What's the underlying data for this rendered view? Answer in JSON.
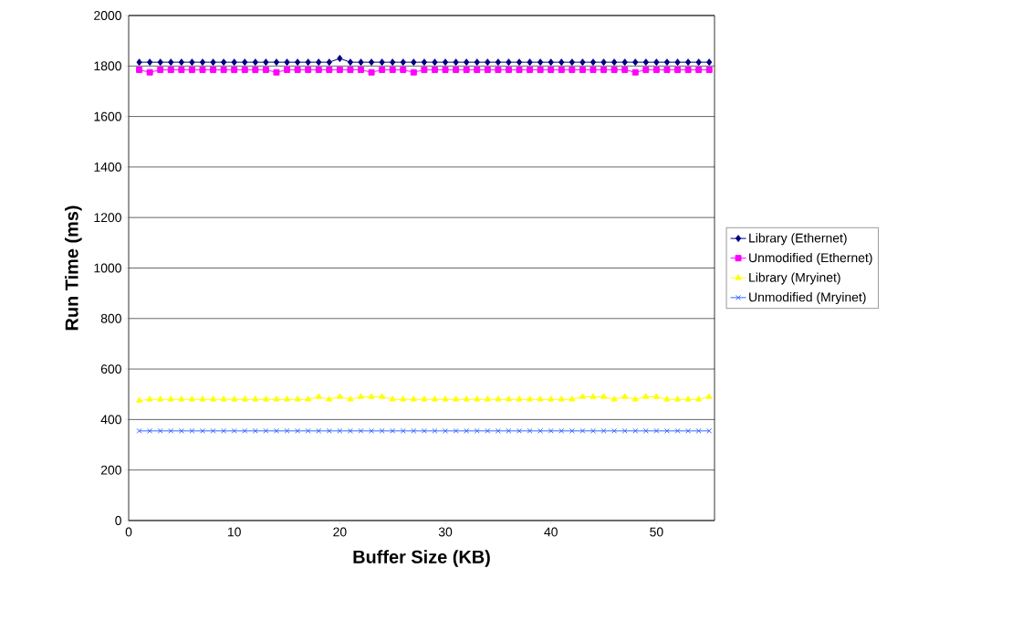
{
  "chart_data": {
    "type": "line",
    "xlabel": "Buffer Size (KB)",
    "ylabel": "Run Time (ms)",
    "x": [
      1,
      2,
      3,
      4,
      5,
      6,
      7,
      8,
      9,
      10,
      11,
      12,
      13,
      14,
      15,
      16,
      17,
      18,
      19,
      20,
      21,
      22,
      23,
      24,
      25,
      26,
      27,
      28,
      29,
      30,
      31,
      32,
      33,
      34,
      35,
      36,
      37,
      38,
      39,
      40,
      41,
      42,
      43,
      44,
      45,
      46,
      47,
      48,
      49,
      50,
      51,
      52,
      53,
      54,
      55
    ],
    "series": [
      {
        "name": "Library (Ethernet)",
        "color": "#000080",
        "marker": "diamond",
        "values": [
          1815,
          1815,
          1815,
          1815,
          1815,
          1815,
          1815,
          1815,
          1815,
          1815,
          1815,
          1815,
          1815,
          1815,
          1815,
          1815,
          1815,
          1815,
          1815,
          1830,
          1815,
          1815,
          1815,
          1815,
          1815,
          1815,
          1815,
          1815,
          1815,
          1815,
          1815,
          1815,
          1815,
          1815,
          1815,
          1815,
          1815,
          1815,
          1815,
          1815,
          1815,
          1815,
          1815,
          1815,
          1815,
          1815,
          1815,
          1815,
          1815,
          1815,
          1815,
          1815,
          1815,
          1815,
          1815
        ]
      },
      {
        "name": "Unmodified (Ethernet)",
        "color": "#ff00ff",
        "marker": "square",
        "values": [
          1785,
          1775,
          1785,
          1785,
          1785,
          1785,
          1785,
          1785,
          1785,
          1785,
          1785,
          1785,
          1785,
          1775,
          1785,
          1785,
          1785,
          1785,
          1785,
          1785,
          1785,
          1785,
          1775,
          1785,
          1785,
          1785,
          1775,
          1785,
          1785,
          1785,
          1785,
          1785,
          1785,
          1785,
          1785,
          1785,
          1785,
          1785,
          1785,
          1785,
          1785,
          1785,
          1785,
          1785,
          1785,
          1785,
          1785,
          1775,
          1785,
          1785,
          1785,
          1785,
          1785,
          1785,
          1785
        ]
      },
      {
        "name": "Library (Mryinet)",
        "color": "#ffff00",
        "marker": "triangle",
        "values": [
          475,
          480,
          480,
          480,
          480,
          480,
          480,
          480,
          480,
          480,
          480,
          480,
          480,
          480,
          480,
          480,
          480,
          490,
          480,
          490,
          480,
          490,
          490,
          490,
          480,
          480,
          480,
          480,
          480,
          480,
          480,
          480,
          480,
          480,
          480,
          480,
          480,
          480,
          480,
          480,
          480,
          480,
          490,
          490,
          490,
          480,
          490,
          480,
          490,
          490,
          480,
          480,
          480,
          480,
          490
        ]
      },
      {
        "name": "Unmodified (Mryinet)",
        "color": "#3366ff",
        "marker": "cross",
        "values": [
          355,
          355,
          355,
          355,
          355,
          355,
          355,
          355,
          355,
          355,
          355,
          355,
          355,
          355,
          355,
          355,
          355,
          355,
          355,
          355,
          355,
          355,
          355,
          355,
          355,
          355,
          355,
          355,
          355,
          355,
          355,
          355,
          355,
          355,
          355,
          355,
          355,
          355,
          355,
          355,
          355,
          355,
          355,
          355,
          355,
          355,
          355,
          355,
          355,
          355,
          355,
          355,
          355,
          355,
          355
        ]
      }
    ],
    "xlim": [
      0,
      55.5
    ],
    "ylim": [
      0,
      2000
    ],
    "xticks": [
      0,
      10,
      20,
      30,
      40,
      50
    ],
    "yticks": [
      0,
      200,
      400,
      600,
      800,
      1000,
      1200,
      1400,
      1600,
      1800,
      2000
    ],
    "grid": "y",
    "legend": "right"
  }
}
